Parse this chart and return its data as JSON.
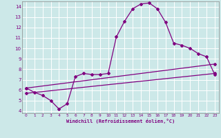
{
  "xlabel": "Windchill (Refroidissement éolien,°C)",
  "bg_color": "#cce8e8",
  "grid_color": "#ffffff",
  "line_color": "#800080",
  "xlim": [
    -0.5,
    23.5
  ],
  "ylim": [
    3.8,
    14.5
  ],
  "yticks": [
    4,
    5,
    6,
    7,
    8,
    9,
    10,
    11,
    12,
    13,
    14
  ],
  "xticks": [
    0,
    1,
    2,
    3,
    4,
    5,
    6,
    7,
    8,
    9,
    10,
    11,
    12,
    13,
    14,
    15,
    16,
    17,
    18,
    19,
    20,
    21,
    22,
    23
  ],
  "line1_x": [
    0,
    1,
    2,
    3,
    4,
    5,
    6,
    7,
    8,
    9,
    10,
    11,
    12,
    13,
    14,
    15,
    16,
    17,
    18,
    19,
    20,
    21,
    22,
    23
  ],
  "line1_y": [
    6.2,
    5.8,
    5.5,
    5.0,
    4.2,
    4.7,
    7.3,
    7.6,
    7.5,
    7.5,
    7.6,
    11.1,
    12.6,
    13.8,
    14.25,
    14.35,
    13.8,
    12.5,
    10.5,
    10.3,
    10.0,
    9.5,
    9.2,
    7.5
  ],
  "line2_x": [
    0,
    23
  ],
  "line2_y": [
    6.2,
    8.5
  ],
  "line3_x": [
    0,
    23
  ],
  "line3_y": [
    5.7,
    7.6
  ]
}
